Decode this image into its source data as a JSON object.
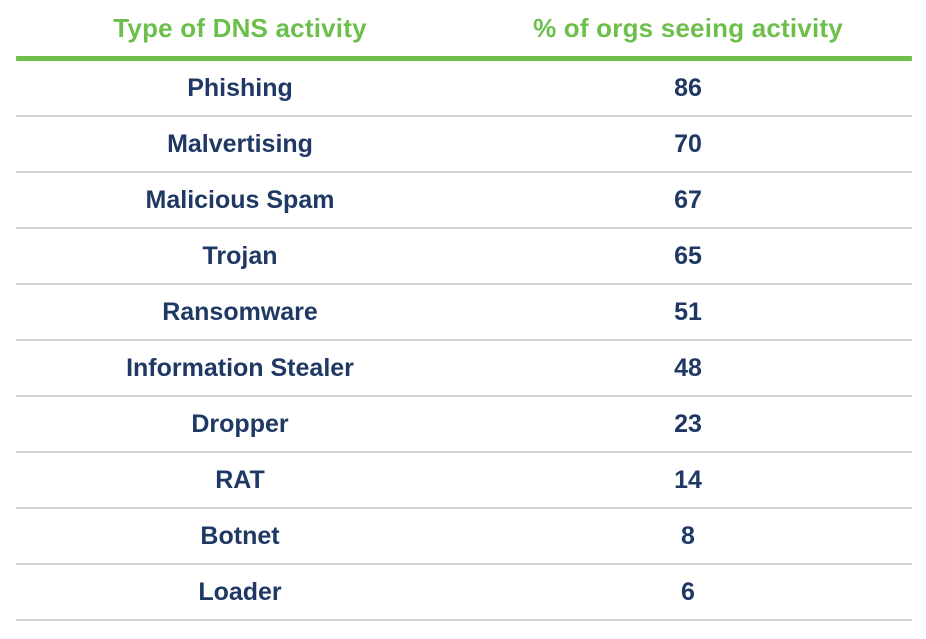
{
  "colors": {
    "header_green": "#6cbf4a",
    "row_navy": "#1f3864",
    "divider_gray": "#d2d2d2",
    "background": "#ffffff"
  },
  "chart_data": {
    "type": "table",
    "columns": [
      "Type of DNS activity",
      "% of orgs seeing activity"
    ],
    "rows": [
      [
        "Phishing",
        86
      ],
      [
        "Malvertising",
        70
      ],
      [
        "Malicious Spam",
        67
      ],
      [
        "Trojan",
        65
      ],
      [
        "Ransomware",
        51
      ],
      [
        "Information Stealer",
        48
      ],
      [
        "Dropper",
        23
      ],
      [
        "RAT",
        14
      ],
      [
        "Botnet",
        8
      ],
      [
        "Loader",
        6
      ]
    ],
    "title": "",
    "xlabel": "",
    "ylabel": "",
    "legend": false,
    "grid": "horizontal-row-dividers",
    "value_range": [
      0,
      100
    ]
  }
}
